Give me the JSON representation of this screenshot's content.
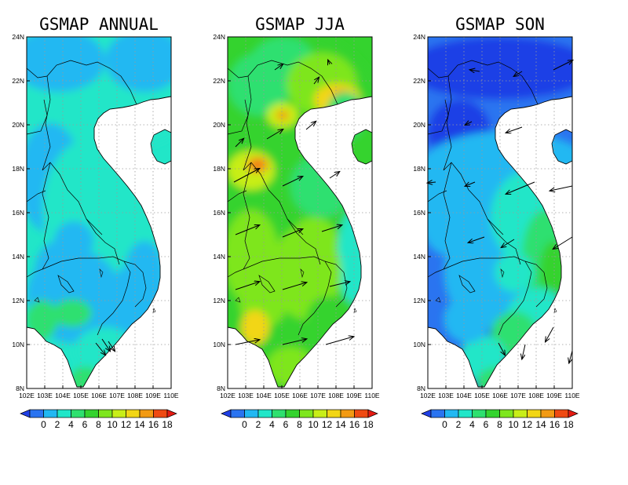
{
  "panels": [
    {
      "title": "GSMAP ANNUAL",
      "mode": "annual"
    },
    {
      "title": "GSMAP JJA",
      "mode": "jja"
    },
    {
      "title": "GSMAP SON",
      "mode": "son"
    }
  ],
  "lat_ticks": [
    "8N",
    "10N",
    "12N",
    "14N",
    "16N",
    "18N",
    "20N",
    "22N",
    "24N"
  ],
  "lon_ticks": [
    "102E",
    "103E",
    "104E",
    "105E",
    "106E",
    "107E",
    "108E",
    "109E",
    "110E"
  ],
  "colorbar": {
    "labels": [
      "0",
      "2",
      "4",
      "6",
      "8",
      "10",
      "12",
      "14",
      "16",
      "18"
    ],
    "colors": [
      "#1f3fe6",
      "#2a74f0",
      "#21b8f2",
      "#21e6c8",
      "#2ee06f",
      "#34d32e",
      "#7ee61e",
      "#c8ee18",
      "#f2d615",
      "#f29a13",
      "#ef4a12",
      "#e61b12"
    ]
  }
}
